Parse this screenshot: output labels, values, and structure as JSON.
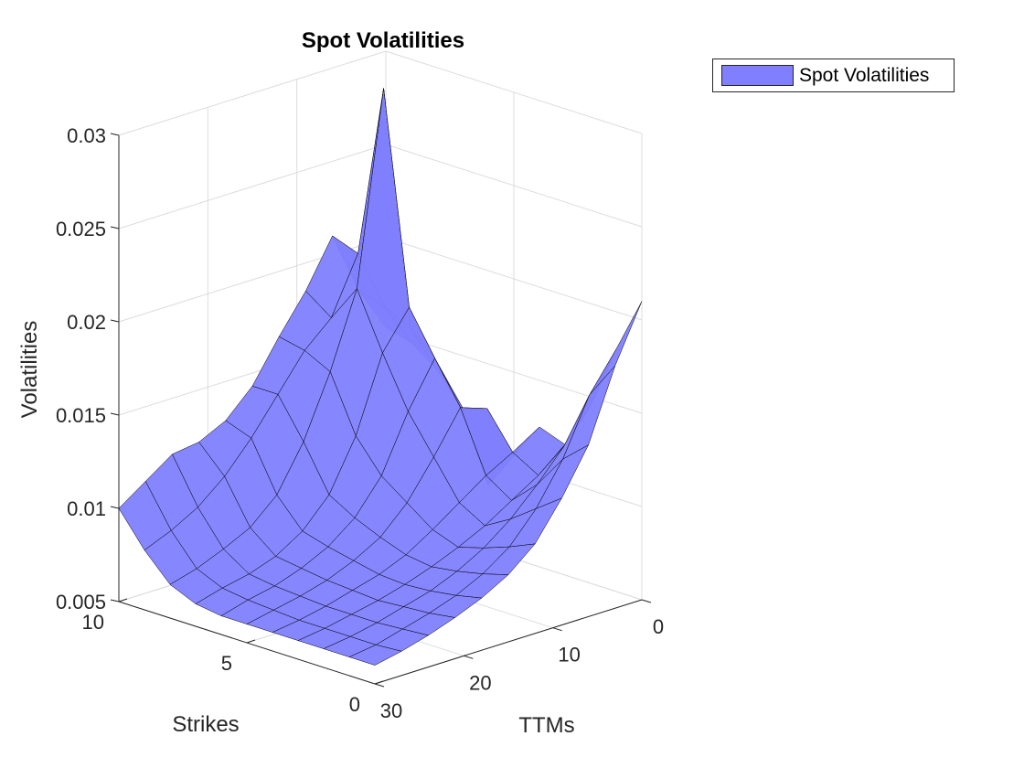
{
  "chart_data": {
    "type": "surface",
    "title": "Spot Volatilities",
    "xlabel": "TTMs",
    "ylabel": "Strikes",
    "zlabel": "Volatilities",
    "x_ticks": [
      "0",
      "10",
      "20",
      "30"
    ],
    "y_ticks": [
      "0",
      "5",
      "10"
    ],
    "z_ticks": [
      "0.005",
      "0.01",
      "0.015",
      "0.02",
      "0.025",
      "0.03"
    ],
    "xlim": [
      0,
      30
    ],
    "ylim": [
      0,
      10
    ],
    "zlim": [
      0.005,
      0.03
    ],
    "grid": true,
    "legend_position": "top-right",
    "series": [
      {
        "name": "Spot Volatilities",
        "color": "#8080ff",
        "edge_color": "#000000",
        "strikes": [
          0,
          1,
          2,
          3,
          4,
          5,
          6,
          7,
          8,
          9,
          10
        ],
        "ttms": [
          0,
          3,
          6,
          9,
          12,
          15,
          18,
          21,
          24,
          27,
          30
        ],
        "z": [
          [
            0.021,
            0.018,
            0.0142,
            0.0118,
            0.0098,
            0.0086,
            0.0078,
            0.0072,
            0.0067,
            0.0063,
            0.006
          ],
          [
            0.018,
            0.016,
            0.013,
            0.0108,
            0.0092,
            0.0082,
            0.0075,
            0.007,
            0.0066,
            0.0062,
            0.006
          ],
          [
            0.0145,
            0.0128,
            0.0112,
            0.0098,
            0.0087,
            0.0079,
            0.0073,
            0.0069,
            0.0065,
            0.0062,
            0.006
          ],
          [
            0.012,
            0.0108,
            0.0099,
            0.009,
            0.0083,
            0.0077,
            0.0072,
            0.0068,
            0.0065,
            0.0062,
            0.006
          ],
          [
            0.0125,
            0.0116,
            0.0108,
            0.0098,
            0.0088,
            0.0079,
            0.0073,
            0.0069,
            0.0065,
            0.0062,
            0.006
          ],
          [
            0.0105,
            0.0135,
            0.014,
            0.0118,
            0.0098,
            0.0084,
            0.0076,
            0.007,
            0.0066,
            0.0063,
            0.006
          ],
          [
            0.0085,
            0.013,
            0.0162,
            0.0138,
            0.0108,
            0.009,
            0.0079,
            0.0072,
            0.0067,
            0.0064,
            0.006
          ],
          [
            0.0122,
            0.0152,
            0.0185,
            0.0165,
            0.0125,
            0.0098,
            0.0083,
            0.0074,
            0.0069,
            0.0066,
            0.0062
          ],
          [
            0.0138,
            0.0165,
            0.0298,
            0.0195,
            0.0155,
            0.0122,
            0.0098,
            0.0085,
            0.0078,
            0.0072,
            0.0068
          ],
          [
            0.0148,
            0.0172,
            0.0205,
            0.0175,
            0.0162,
            0.0143,
            0.0124,
            0.0108,
            0.0096,
            0.0088,
            0.0082
          ],
          [
            0.0152,
            0.0176,
            0.021,
            0.0185,
            0.0165,
            0.0143,
            0.0129,
            0.0122,
            0.012,
            0.011,
            0.01
          ]
        ]
      }
    ]
  }
}
